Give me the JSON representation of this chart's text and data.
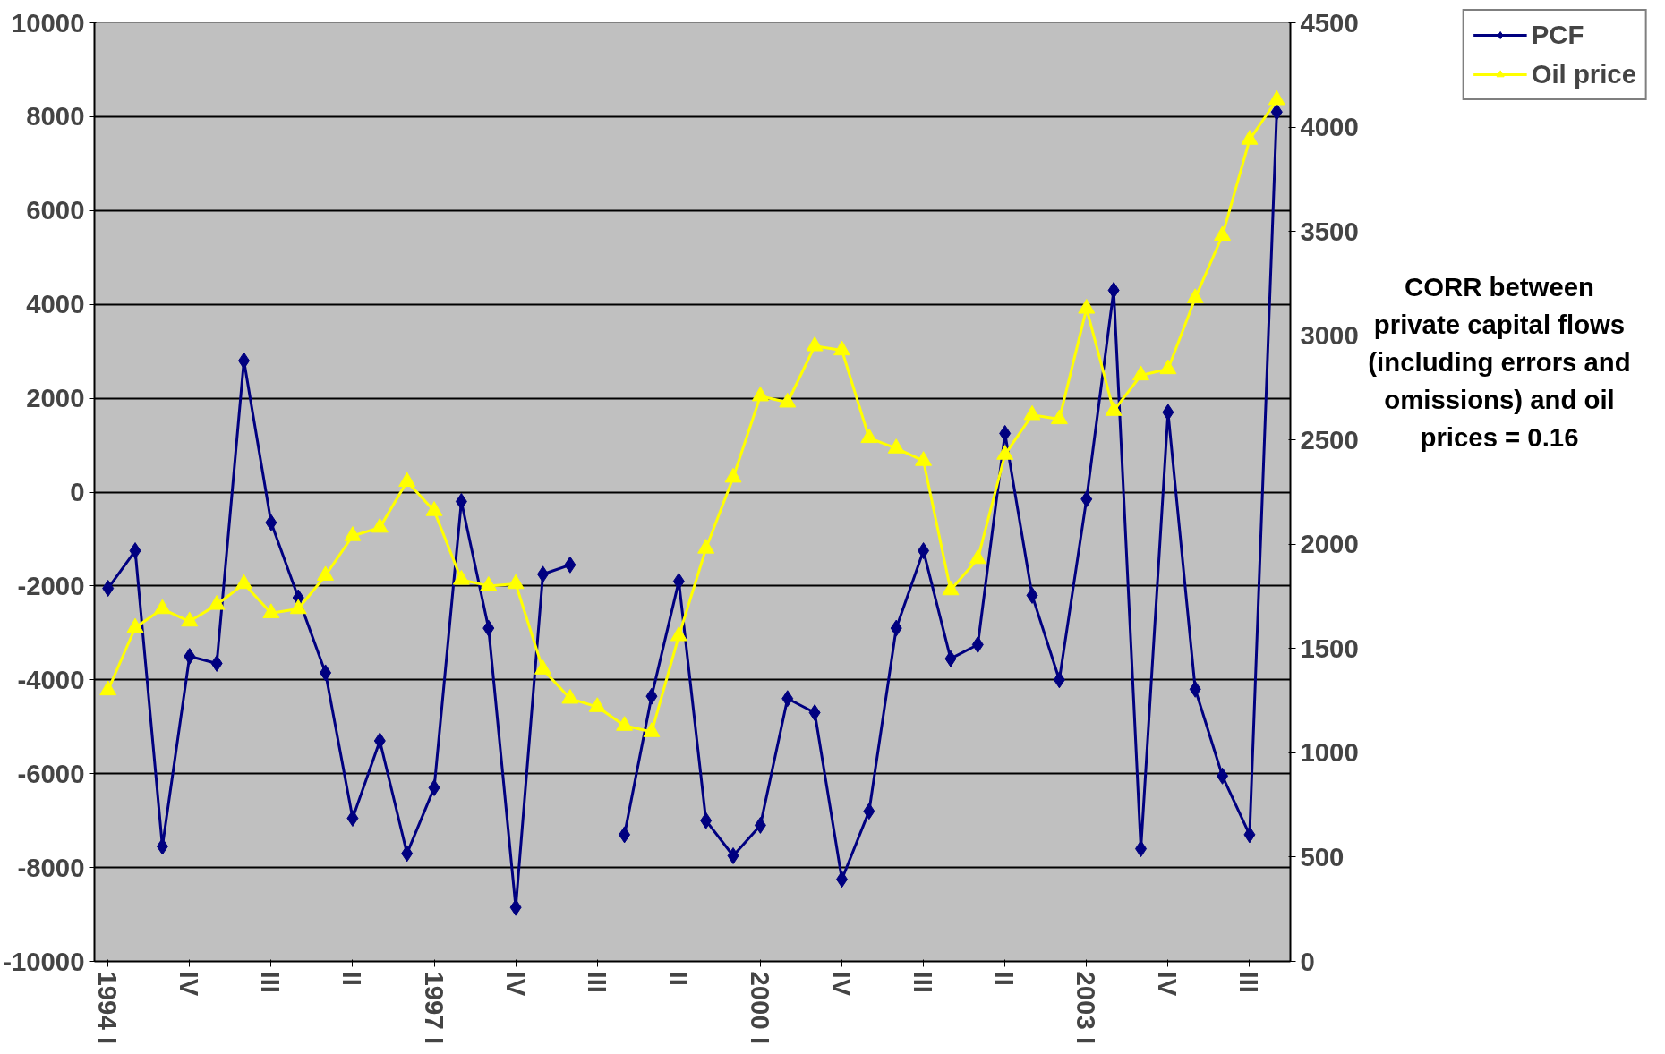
{
  "chart_data": {
    "type": "line",
    "categories": [
      "1994 I",
      null,
      null,
      "IV",
      null,
      null,
      "III",
      null,
      null,
      "II",
      null,
      null,
      "1997 I",
      null,
      null,
      "IV",
      null,
      null,
      "III",
      null,
      null,
      "II",
      null,
      null,
      "2000 I",
      null,
      null,
      "IV",
      null,
      null,
      "III",
      null,
      null,
      "II",
      null,
      null,
      "2003 I",
      null,
      null,
      "IV",
      null,
      null,
      "III",
      null
    ],
    "series": [
      {
        "name": "PCF",
        "color": "#000080",
        "marker": "diamond",
        "values": [
          -2050,
          -1250,
          -7550,
          -3500,
          -3650,
          2800,
          -650,
          -2250,
          -3850,
          -6950,
          -5300,
          -7700,
          -6300,
          -200,
          -2900,
          -8850,
          -1750,
          -1550,
          null,
          -7300,
          -4350,
          -1900,
          -7000,
          -7750,
          -7100,
          -4400,
          -4700,
          -8250,
          -6800,
          -2900,
          -1250,
          -3550,
          -3250,
          1250,
          -2200,
          -4000,
          -150,
          4300,
          -7600,
          1700,
          -4200,
          -6050,
          -7300,
          8100
        ]
      },
      {
        "name": "Oil price",
        "color": "#ffff00",
        "marker": "triangle",
        "axis": "y2",
        "values": [
          1300,
          1600,
          1690,
          1630,
          1710,
          1810,
          1670,
          1690,
          1850,
          2040,
          2080,
          2300,
          2160,
          1830,
          1800,
          1810,
          1400,
          1260,
          1220,
          1130,
          1100,
          1560,
          1980,
          2320,
          2710,
          2680,
          2950,
          2930,
          2510,
          2460,
          2400,
          1780,
          1930,
          2430,
          2620,
          2600,
          3130,
          2640,
          2810,
          2840,
          3180,
          3480,
          3940,
          4130
        ]
      }
    ],
    "ylim": [
      -10000,
      10000
    ],
    "yticks": [
      -10000,
      -8000,
      -6000,
      -4000,
      -2000,
      0,
      2000,
      4000,
      6000,
      8000,
      10000
    ],
    "y2lim": [
      0,
      4500
    ],
    "y2ticks": [
      0,
      500,
      1000,
      1500,
      2000,
      2500,
      3000,
      3500,
      4000,
      4500
    ],
    "grid": "y",
    "legend": "top right",
    "annotations": [
      "CORR between private capital flows (including errors and omissions) and oil prices = 0.16"
    ]
  }
}
